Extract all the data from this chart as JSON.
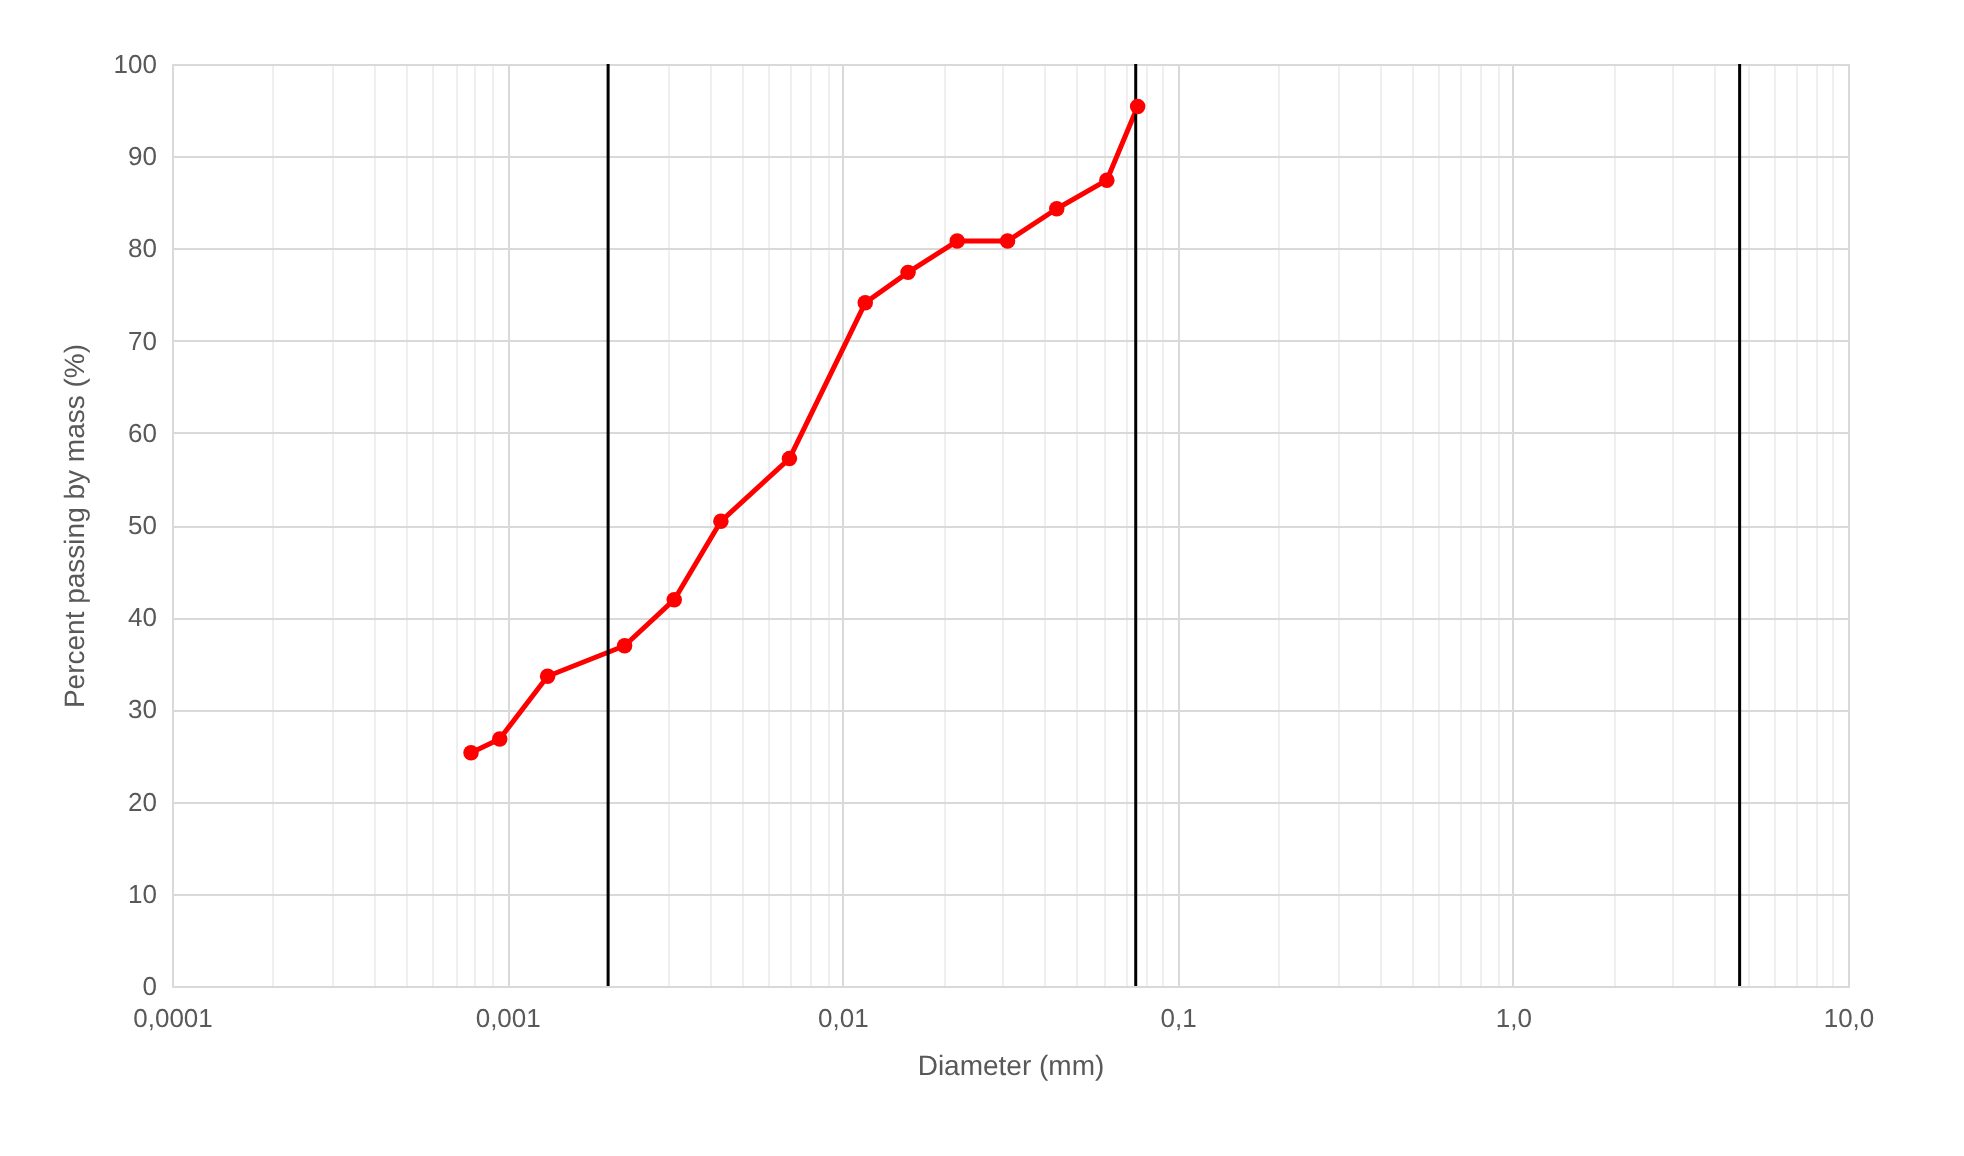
{
  "chart_data": {
    "type": "line",
    "xlabel": "Diameter (mm)",
    "ylabel": "Percent passing by mass (%)",
    "x": [
      0.00078,
      0.00095,
      0.00132,
      0.00224,
      0.00315,
      0.00434,
      0.00695,
      0.0117,
      0.0157,
      0.022,
      0.0311,
      0.0436,
      0.0615,
      0.076
    ],
    "series": [
      {
        "color": "#ff0000",
        "values": [
          25.3,
          26.8,
          33.6,
          36.9,
          41.9,
          50.4,
          57.2,
          74.1,
          77.4,
          80.8,
          80.8,
          84.3,
          87.4,
          95.4
        ]
      }
    ],
    "log": "x",
    "marker": "circle",
    "line_style": "solid",
    "grid": true,
    "xlim": [
      0.0001,
      10
    ],
    "xticks": [
      {
        "value": 0.0001,
        "label": "0,0001"
      },
      {
        "value": 0.0002,
        "label": null
      },
      {
        "value": 0.0003,
        "label": null
      },
      {
        "value": 0.0004,
        "label": null
      },
      {
        "value": 0.0005,
        "label": null
      },
      {
        "value": 0.0006,
        "label": null
      },
      {
        "value": 0.0007,
        "label": null
      },
      {
        "value": 0.0008,
        "label": null
      },
      {
        "value": 0.0009,
        "label": null
      },
      {
        "value": 0.001,
        "label": "0,001"
      },
      {
        "value": 0.002,
        "label": null
      },
      {
        "value": 0.003,
        "label": null
      },
      {
        "value": 0.004,
        "label": null
      },
      {
        "value": 0.005,
        "label": null
      },
      {
        "value": 0.006,
        "label": null
      },
      {
        "value": 0.007,
        "label": null
      },
      {
        "value": 0.008,
        "label": null
      },
      {
        "value": 0.009,
        "label": null
      },
      {
        "value": 0.01,
        "label": "0,01"
      },
      {
        "value": 0.02,
        "label": null
      },
      {
        "value": 0.03,
        "label": null
      },
      {
        "value": 0.04,
        "label": null
      },
      {
        "value": 0.05,
        "label": null
      },
      {
        "value": 0.06,
        "label": null
      },
      {
        "value": 0.07,
        "label": null
      },
      {
        "value": 0.08,
        "label": null
      },
      {
        "value": 0.09,
        "label": null
      },
      {
        "value": 0.1,
        "label": "0,1"
      },
      {
        "value": 0.2,
        "label": null
      },
      {
        "value": 0.3,
        "label": null
      },
      {
        "value": 0.4,
        "label": null
      },
      {
        "value": 0.5,
        "label": null
      },
      {
        "value": 0.6,
        "label": null
      },
      {
        "value": 0.7,
        "label": null
      },
      {
        "value": 0.8,
        "label": null
      },
      {
        "value": 0.9,
        "label": null
      },
      {
        "value": 1,
        "label": "1,0"
      },
      {
        "value": 2,
        "label": null
      },
      {
        "value": 3,
        "label": null
      },
      {
        "value": 4,
        "label": null
      },
      {
        "value": 5,
        "label": null
      },
      {
        "value": 6,
        "label": null
      },
      {
        "value": 7,
        "label": null
      },
      {
        "value": 8,
        "label": null
      },
      {
        "value": 9,
        "label": null
      },
      {
        "value": 10,
        "label": "10,0"
      }
    ],
    "ylim": [
      0,
      100
    ],
    "yticks": [
      0,
      10,
      20,
      30,
      40,
      50,
      60,
      70,
      80,
      90,
      100
    ],
    "ref_lines": [
      {
        "axis": "x",
        "value": 0.002,
        "color": "#000000"
      },
      {
        "axis": "x",
        "value": 0.075,
        "color": "#000000"
      },
      {
        "axis": "x",
        "value": 4.75,
        "color": "#000000"
      }
    ]
  }
}
